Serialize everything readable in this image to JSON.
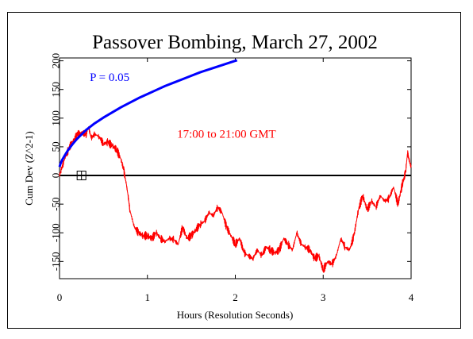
{
  "chart_data": {
    "type": "line",
    "title": "Passover Bombing, March 27, 2002",
    "xlabel": "Hours (Resolution Seconds)",
    "ylabel": "Cum Dev (Z^2-1)",
    "xlim": [
      0,
      4
    ],
    "ylim": [
      -180,
      205
    ],
    "x_ticks": [
      0,
      1,
      2,
      3,
      4
    ],
    "x_tick_labels": [
      "0",
      "1",
      "2",
      "3",
      "4"
    ],
    "y_ticks": [
      -150,
      -100,
      -50,
      0,
      50,
      100,
      150,
      200
    ],
    "y_tick_labels": [
      "-150",
      "-100",
      "-50",
      "0",
      "50",
      "100",
      "150",
      "200"
    ],
    "grid": false,
    "colors": {
      "data": "#ff0000",
      "p05": "#0000ff",
      "zero": "#000000",
      "text": "#000000"
    },
    "annotations": [
      {
        "text": "P = 0.05",
        "color": "#0000ff",
        "x": 0.57,
        "y": 165
      },
      {
        "text": "17:00 to 21:00 GMT",
        "color": "#ff0000",
        "x": 1.9,
        "y": 66
      }
    ],
    "marker": {
      "type": "crossed-square",
      "x": 0.25,
      "y": 0
    },
    "series": [
      {
        "name": "17:00 to 21:00 GMT",
        "color": "#ff0000",
        "x": [
          0,
          0.02,
          0.05,
          0.1,
          0.15,
          0.2,
          0.25,
          0.3,
          0.33,
          0.36,
          0.4,
          0.45,
          0.5,
          0.55,
          0.6,
          0.65,
          0.7,
          0.73,
          0.76,
          0.78,
          0.8,
          0.85,
          0.9,
          0.95,
          1.0,
          1.05,
          1.1,
          1.15,
          1.2,
          1.25,
          1.3,
          1.35,
          1.4,
          1.45,
          1.5,
          1.55,
          1.6,
          1.65,
          1.7,
          1.75,
          1.8,
          1.85,
          1.9,
          1.95,
          2.0,
          2.05,
          2.1,
          2.15,
          2.2,
          2.25,
          2.3,
          2.35,
          2.4,
          2.45,
          2.5,
          2.55,
          2.6,
          2.65,
          2.7,
          2.75,
          2.8,
          2.85,
          2.9,
          2.95,
          3.0,
          3.05,
          3.1,
          3.15,
          3.2,
          3.25,
          3.3,
          3.35,
          3.4,
          3.45,
          3.5,
          3.55,
          3.6,
          3.65,
          3.7,
          3.75,
          3.8,
          3.85,
          3.88,
          3.9,
          3.92,
          3.94,
          3.96,
          3.98,
          4.0
        ],
        "values": [
          0,
          10,
          25,
          45,
          60,
          70,
          75,
          72,
          85,
          65,
          72,
          68,
          55,
          58,
          52,
          45,
          28,
          10,
          -15,
          -35,
          -60,
          -90,
          -100,
          -105,
          -105,
          -110,
          -100,
          -110,
          -115,
          -110,
          -112,
          -120,
          -90,
          -110,
          -105,
          -95,
          -85,
          -80,
          -65,
          -70,
          -55,
          -65,
          -90,
          -105,
          -120,
          -110,
          -135,
          -140,
          -145,
          -130,
          -140,
          -125,
          -130,
          -135,
          -130,
          -110,
          -120,
          -130,
          -100,
          -120,
          -125,
          -130,
          -145,
          -140,
          -165,
          -150,
          -155,
          -140,
          -110,
          -125,
          -130,
          -105,
          -60,
          -35,
          -60,
          -45,
          -55,
          -35,
          -45,
          -40,
          -20,
          -50,
          -30,
          -15,
          -5,
          10,
          40,
          25,
          15
        ]
      },
      {
        "name": "P = 0.05",
        "color": "#0000ff",
        "x": [
          0,
          0.01,
          0.03,
          0.06,
          0.1,
          0.15,
          0.2,
          0.3,
          0.4,
          0.5,
          0.6,
          0.7,
          0.8,
          0.9,
          1.0,
          1.1,
          1.2,
          1.3,
          1.4,
          1.5,
          1.6,
          1.7,
          1.8,
          1.9,
          2.0,
          2.02
        ],
        "values": [
          15,
          20,
          27,
          35,
          45,
          55,
          64,
          79,
          91,
          101,
          110,
          119,
          127,
          135,
          142,
          149,
          156,
          162,
          168,
          174,
          180,
          185,
          190,
          195,
          200,
          201
        ]
      }
    ]
  }
}
